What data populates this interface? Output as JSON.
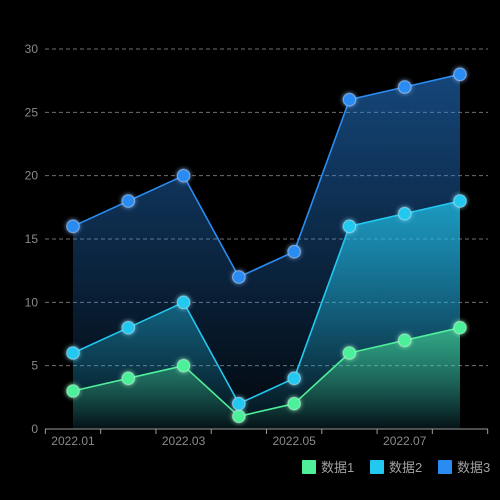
{
  "colors": {
    "background": "#000000",
    "grid": "#6e6e6e",
    "axis": "#9a9a9a",
    "tick_text": "#8a8a8a",
    "legend_text": "#a0a0a0"
  },
  "chart_data": {
    "type": "area",
    "categories": [
      "2022.01",
      "2022.02",
      "2022.03",
      "2022.04",
      "2022.05",
      "2022.06",
      "2022.07",
      "2022.08"
    ],
    "x_tick_labels": [
      "2022.01",
      "2022.03",
      "2022.05",
      "2022.07"
    ],
    "ylim": [
      0,
      30
    ],
    "y_ticks": [
      0,
      5,
      10,
      15,
      20,
      25,
      30
    ],
    "grid": "horizontal dashed",
    "legend_position": "bottom-right",
    "series": [
      {
        "name": "数据1",
        "values": [
          3,
          4,
          5,
          1,
          2,
          6,
          7,
          8
        ],
        "color": "#4ef09a"
      },
      {
        "name": "数据2",
        "values": [
          6,
          8,
          10,
          2,
          4,
          16,
          17,
          18
        ],
        "color": "#22c8f0"
      },
      {
        "name": "数据3",
        "values": [
          16,
          18,
          20,
          12,
          14,
          26,
          27,
          28
        ],
        "color": "#2a8cf2"
      }
    ]
  }
}
